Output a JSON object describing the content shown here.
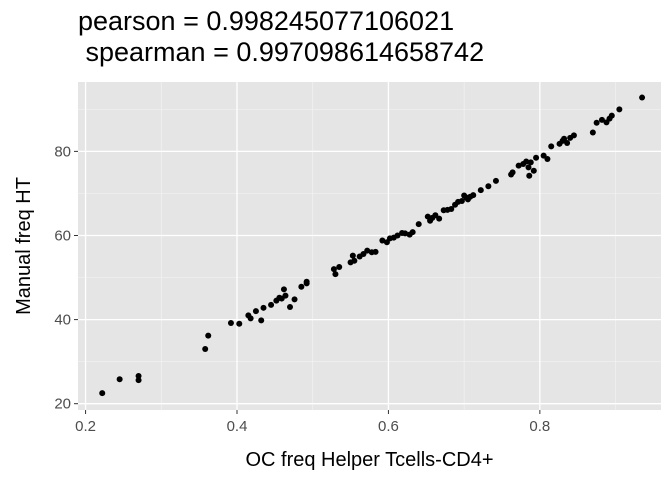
{
  "chart_data": {
    "type": "scatter",
    "title_line1": "pearson = 0.998245077106021",
    "title_line2": " spearman = 0.997098614658742",
    "xlabel": "OC freq Helper Tcells-CD4+",
    "ylabel": "Manual freq HT",
    "xlim": [
      0.19,
      0.96
    ],
    "ylim": [
      18.5,
      96.5
    ],
    "x_ticks": [
      0.2,
      0.4,
      0.6,
      0.8
    ],
    "x_tick_labels": [
      "0.2",
      "0.4",
      "0.6",
      "0.8"
    ],
    "y_ticks": [
      20,
      40,
      60,
      80
    ],
    "y_tick_labels": [
      "20",
      "40",
      "60",
      "80"
    ],
    "grid": true,
    "background": "#e5e5e5",
    "point_color": "#000000",
    "points": [
      [
        0.222,
        22.5
      ],
      [
        0.245,
        25.8
      ],
      [
        0.27,
        26.6
      ],
      [
        0.27,
        25.6
      ],
      [
        0.358,
        33.0
      ],
      [
        0.362,
        36.2
      ],
      [
        0.392,
        39.2
      ],
      [
        0.403,
        39.0
      ],
      [
        0.415,
        41.0
      ],
      [
        0.418,
        40.3
      ],
      [
        0.425,
        42.0
      ],
      [
        0.432,
        39.8
      ],
      [
        0.435,
        42.8
      ],
      [
        0.445,
        43.5
      ],
      [
        0.452,
        44.5
      ],
      [
        0.456,
        45.2
      ],
      [
        0.459,
        45.0
      ],
      [
        0.462,
        47.2
      ],
      [
        0.464,
        45.7
      ],
      [
        0.47,
        43.0
      ],
      [
        0.476,
        44.8
      ],
      [
        0.485,
        47.8
      ],
      [
        0.492,
        48.6
      ],
      [
        0.492,
        49.0
      ],
      [
        0.528,
        52.0
      ],
      [
        0.53,
        50.8
      ],
      [
        0.535,
        52.5
      ],
      [
        0.55,
        53.6
      ],
      [
        0.553,
        55.2
      ],
      [
        0.555,
        54.0
      ],
      [
        0.562,
        55.0
      ],
      [
        0.567,
        55.6
      ],
      [
        0.572,
        56.4
      ],
      [
        0.578,
        56.0
      ],
      [
        0.583,
        56.1
      ],
      [
        0.592,
        58.8
      ],
      [
        0.598,
        58.4
      ],
      [
        0.602,
        59.3
      ],
      [
        0.607,
        59.5
      ],
      [
        0.612,
        60.0
      ],
      [
        0.618,
        60.6
      ],
      [
        0.622,
        60.5
      ],
      [
        0.628,
        60.2
      ],
      [
        0.632,
        60.8
      ],
      [
        0.64,
        62.7
      ],
      [
        0.652,
        64.5
      ],
      [
        0.655,
        63.5
      ],
      [
        0.658,
        64.2
      ],
      [
        0.662,
        64.8
      ],
      [
        0.667,
        64.0
      ],
      [
        0.673,
        66.0
      ],
      [
        0.678,
        66.1
      ],
      [
        0.683,
        66.3
      ],
      [
        0.688,
        67.3
      ],
      [
        0.692,
        68.0
      ],
      [
        0.697,
        68.2
      ],
      [
        0.7,
        69.5
      ],
      [
        0.703,
        69.0
      ],
      [
        0.705,
        68.6
      ],
      [
        0.708,
        69.2
      ],
      [
        0.712,
        69.6
      ],
      [
        0.722,
        70.8
      ],
      [
        0.732,
        71.7
      ],
      [
        0.742,
        73.0
      ],
      [
        0.762,
        74.5
      ],
      [
        0.764,
        75.0
      ],
      [
        0.772,
        76.6
      ],
      [
        0.778,
        77.0
      ],
      [
        0.782,
        77.6
      ],
      [
        0.785,
        76.2
      ],
      [
        0.786,
        74.2
      ],
      [
        0.788,
        77.4
      ],
      [
        0.792,
        75.4
      ],
      [
        0.795,
        78.5
      ],
      [
        0.805,
        79.0
      ],
      [
        0.81,
        78.2
      ],
      [
        0.815,
        81.2
      ],
      [
        0.826,
        81.8
      ],
      [
        0.83,
        82.5
      ],
      [
        0.832,
        83.0
      ],
      [
        0.836,
        82.0
      ],
      [
        0.84,
        83.2
      ],
      [
        0.845,
        83.8
      ],
      [
        0.87,
        84.5
      ],
      [
        0.875,
        86.8
      ],
      [
        0.882,
        87.5
      ],
      [
        0.888,
        86.9
      ],
      [
        0.892,
        87.8
      ],
      [
        0.895,
        88.5
      ],
      [
        0.905,
        90.0
      ],
      [
        0.935,
        92.8
      ]
    ]
  }
}
